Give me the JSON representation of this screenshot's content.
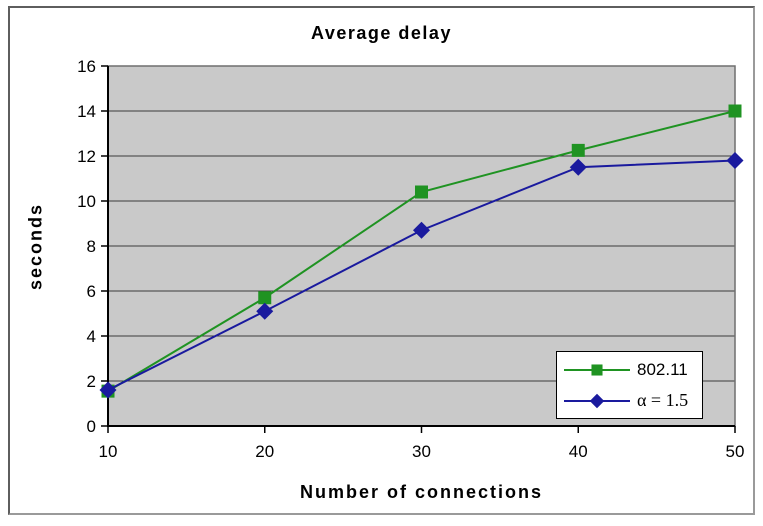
{
  "window": {
    "background": "#ffffff",
    "frame_border_color": "#808080"
  },
  "chart_data": {
    "type": "line",
    "title": "Average delay",
    "xlabel": "Number of connections",
    "ylabel": "seconds",
    "x": [
      10,
      20,
      30,
      40,
      50
    ],
    "xlim": [
      10,
      50
    ],
    "ylim": [
      0,
      16
    ],
    "yticks": [
      0,
      2,
      4,
      6,
      8,
      10,
      12,
      14,
      16
    ],
    "grid": "horizontal",
    "plot_background": "#c9c9c9",
    "grid_color": "#3c3c3c",
    "axis_color": "#000000",
    "plot_border_color": "#6f6f6f",
    "legend": {
      "position": "inside-bottom-right",
      "background": "#ffffff",
      "border_color": "#000000"
    },
    "series": [
      {
        "name": "802.11",
        "color": "#1f9322",
        "marker": "square",
        "values": [
          1.55,
          5.7,
          10.4,
          12.25,
          14.0
        ]
      },
      {
        "name": "α = 1.5",
        "color": "#1a1a9e",
        "marker": "diamond",
        "values": [
          1.6,
          5.1,
          8.7,
          11.5,
          11.8
        ]
      }
    ]
  }
}
